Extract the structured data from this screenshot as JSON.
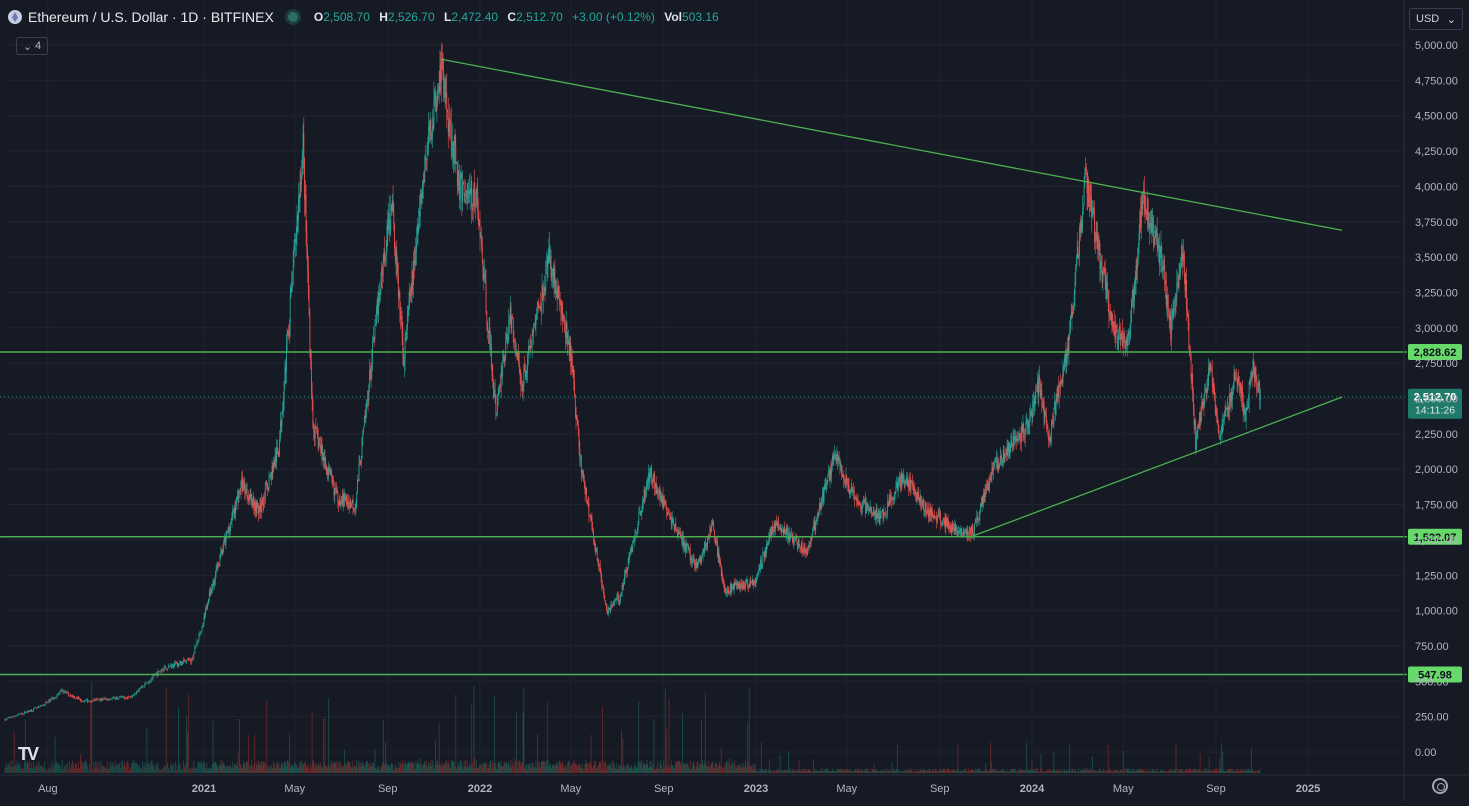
{
  "header": {
    "symbol_title": "Ethereum / U.S. Dollar · 1D · BITFINEX",
    "open_label": "O",
    "open_value": "2,508.70",
    "high_label": "H",
    "high_value": "2,526.70",
    "low_label": "L",
    "low_value": "2,472.40",
    "close_label": "C",
    "close_value": "2,512.70",
    "change": "+3.00 (+0.12%)",
    "vol_label": "Vol",
    "vol_value": "503.16",
    "indicator_count": "4"
  },
  "currency": "USD",
  "colors": {
    "background": "#161a25",
    "up": "#26a69a",
    "down": "#ef5350",
    "trendline": "#4caf50",
    "level_label_bg": "#66d96a",
    "price_label_bg": "#1f7a6a"
  },
  "chart_data": {
    "type": "candlestick",
    "interval": "1D",
    "x_ticks": [
      "Aug",
      "2021",
      "May",
      "Sep",
      "2022",
      "May",
      "Sep",
      "2023",
      "May",
      "Sep",
      "2024",
      "May",
      "Sep",
      "2025"
    ],
    "y_ticks": [
      "0.00",
      "250.00",
      "500.00",
      "750.00",
      "1,000.00",
      "1,250.00",
      "1,500.00",
      "1,750.00",
      "2,000.00",
      "2,250.00",
      "2,500.00",
      "2,750.00",
      "3,000.00",
      "3,250.00",
      "3,500.00",
      "3,750.00",
      "4,000.00",
      "4,250.00",
      "4,500.00",
      "4,750.00",
      "5,000.00"
    ],
    "ylim": [
      0,
      5000
    ],
    "grid": true,
    "price_path": [
      [
        "2020-06-20",
        230
      ],
      [
        "2020-07-25",
        320
      ],
      [
        "2020-08-15",
        430
      ],
      [
        "2020-09-05",
        360
      ],
      [
        "2020-10-20",
        390
      ],
      [
        "2020-11-24",
        600
      ],
      [
        "2020-12-20",
        650
      ],
      [
        "2021-01-05",
        1050
      ],
      [
        "2021-02-20",
        1900
      ],
      [
        "2021-03-15",
        1700
      ],
      [
        "2021-04-10",
        2150
      ],
      [
        "2021-05-12",
        4300
      ],
      [
        "2021-05-25",
        2300
      ],
      [
        "2021-06-26",
        1800
      ],
      [
        "2021-07-20",
        1750
      ],
      [
        "2021-08-22",
        3300
      ],
      [
        "2021-09-06",
        3900
      ],
      [
        "2021-09-22",
        2800
      ],
      [
        "2021-10-20",
        4150
      ],
      [
        "2021-11-10",
        4850
      ],
      [
        "2021-12-05",
        4000
      ],
      [
        "2021-12-28",
        3900
      ],
      [
        "2022-01-22",
        2400
      ],
      [
        "2022-02-10",
        3100
      ],
      [
        "2022-02-25",
        2600
      ],
      [
        "2022-04-03",
        3500
      ],
      [
        "2022-05-01",
        2800
      ],
      [
        "2022-05-15",
        2000
      ],
      [
        "2022-06-18",
        1000
      ],
      [
        "2022-07-05",
        1100
      ],
      [
        "2022-08-14",
        1980
      ],
      [
        "2022-09-10",
        1650
      ],
      [
        "2022-10-15",
        1300
      ],
      [
        "2022-11-05",
        1600
      ],
      [
        "2022-11-20",
        1150
      ],
      [
        "2022-12-30",
        1200
      ],
      [
        "2023-01-25",
        1620
      ],
      [
        "2023-03-10",
        1420
      ],
      [
        "2023-04-15",
        2100
      ],
      [
        "2023-05-10",
        1800
      ],
      [
        "2023-06-15",
        1650
      ],
      [
        "2023-07-15",
        1950
      ],
      [
        "2023-08-17",
        1700
      ],
      [
        "2023-09-15",
        1600
      ],
      [
        "2023-10-15",
        1550
      ],
      [
        "2023-11-10",
        2000
      ],
      [
        "2023-12-25",
        2300
      ],
      [
        "2024-01-10",
        2600
      ],
      [
        "2024-01-23",
        2200
      ],
      [
        "2024-02-20",
        2950
      ],
      [
        "2024-03-12",
        4050
      ],
      [
        "2024-04-17",
        3000
      ],
      [
        "2024-05-08",
        2900
      ],
      [
        "2024-05-27",
        3950
      ],
      [
        "2024-06-20",
        3500
      ],
      [
        "2024-07-03",
        3000
      ],
      [
        "2024-07-20",
        3500
      ],
      [
        "2024-08-05",
        2200
      ],
      [
        "2024-08-25",
        2750
      ],
      [
        "2024-09-06",
        2200
      ],
      [
        "2024-09-28",
        2700
      ],
      [
        "2024-10-10",
        2400
      ],
      [
        "2024-10-20",
        2720
      ],
      [
        "2024-10-30",
        2512.7
      ]
    ],
    "horizontal_levels": [
      {
        "value": 2828.62,
        "label": "2,828.62"
      },
      {
        "value": 1522.07,
        "label": "1,522.07"
      },
      {
        "value": 547.98,
        "label": "547.98"
      }
    ],
    "trendlines": [
      {
        "from": [
          "2021-11-10",
          4900
        ],
        "to": [
          "2025-02-15",
          3690
        ]
      },
      {
        "from": [
          "2023-10-12",
          1522
        ],
        "to": [
          "2025-02-15",
          2510
        ]
      }
    ],
    "last_price": {
      "value": 2512.7,
      "label": "2,512.70",
      "countdown": "14:11:26"
    }
  }
}
